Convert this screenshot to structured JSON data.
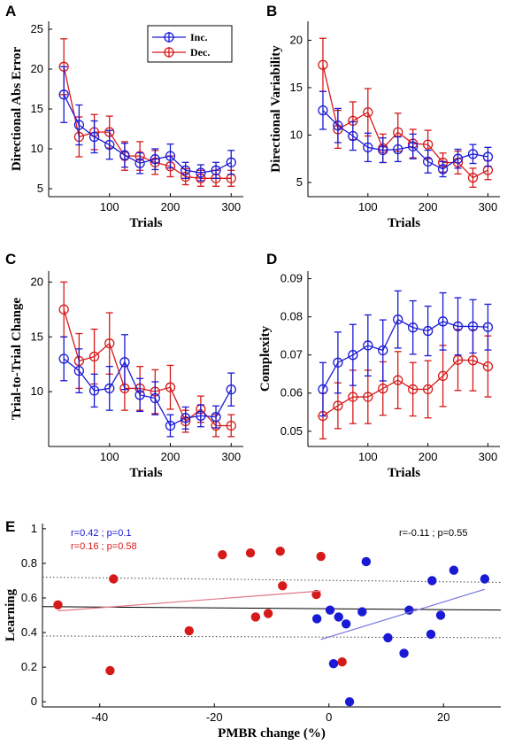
{
  "colors": {
    "inc": "#1a1ad6",
    "dec": "#d61a1a",
    "fit_all": "#000000"
  },
  "chart_data": [
    {
      "panel": "A",
      "type": "line",
      "ylabel": "Directional Abs Error",
      "xlabel": "Trials",
      "xlim": [
        0,
        320
      ],
      "ylim": [
        4,
        26
      ],
      "xticks": [
        100,
        200,
        300
      ],
      "yticks": [
        5,
        10,
        15,
        20,
        25
      ],
      "legend": {
        "placement": "top-center",
        "entries": [
          "Inc.",
          "Dec."
        ]
      },
      "x": [
        25,
        50,
        75,
        100,
        125,
        150,
        175,
        200,
        225,
        250,
        275,
        300
      ],
      "series": [
        {
          "name": "Inc.",
          "values": [
            16.8,
            13.0,
            11.5,
            10.5,
            9.2,
            8.2,
            8.7,
            9.1,
            7.3,
            7.0,
            7.3,
            8.3
          ],
          "err": [
            3.5,
            2.5,
            2.0,
            1.8,
            1.5,
            1.3,
            1.3,
            1.5,
            1.0,
            1.0,
            1.0,
            1.5
          ]
        },
        {
          "name": "Dec.",
          "values": [
            20.3,
            11.5,
            12.1,
            12.1,
            9.1,
            9.1,
            8.3,
            7.8,
            6.5,
            6.3,
            6.3,
            6.3
          ],
          "err": [
            3.5,
            2.5,
            2.2,
            2.0,
            1.8,
            1.8,
            1.5,
            1.3,
            1.0,
            1.0,
            1.0,
            1.0
          ]
        }
      ]
    },
    {
      "panel": "B",
      "type": "line",
      "ylabel": "Directional Variability",
      "xlabel": "Trials",
      "xlim": [
        0,
        320
      ],
      "ylim": [
        3.5,
        22
      ],
      "xticks": [
        100,
        200,
        300
      ],
      "yticks": [
        5,
        10,
        15,
        20
      ],
      "x": [
        25,
        50,
        75,
        100,
        125,
        150,
        175,
        200,
        225,
        250,
        275,
        300
      ],
      "series": [
        {
          "name": "Inc.",
          "values": [
            12.6,
            11.0,
            9.9,
            8.7,
            8.4,
            8.5,
            8.8,
            7.2,
            6.4,
            7.5,
            8.0,
            7.7
          ],
          "err": [
            2.0,
            1.8,
            1.5,
            1.5,
            1.3,
            1.3,
            1.3,
            1.2,
            0.8,
            1.0,
            1.0,
            1.0
          ]
        },
        {
          "name": "Dec.",
          "values": [
            17.4,
            10.6,
            11.5,
            12.4,
            8.6,
            10.3,
            9.1,
            9.0,
            7.1,
            7.1,
            5.5,
            6.3
          ],
          "err": [
            2.8,
            2.0,
            2.0,
            2.5,
            1.5,
            2.0,
            1.5,
            1.5,
            1.0,
            1.2,
            1.0,
            1.0
          ]
        }
      ]
    },
    {
      "panel": "C",
      "type": "line",
      "ylabel": "Trial-to-Trial Change",
      "xlabel": "Trials",
      "xlim": [
        0,
        320
      ],
      "ylim": [
        5,
        21
      ],
      "xticks": [
        100,
        200,
        300
      ],
      "yticks": [
        10,
        15,
        20
      ],
      "x": [
        25,
        50,
        75,
        100,
        125,
        150,
        175,
        200,
        225,
        250,
        275,
        300
      ],
      "series": [
        {
          "name": "Inc.",
          "values": [
            13.0,
            11.9,
            10.1,
            10.3,
            12.7,
            9.7,
            9.4,
            6.9,
            7.6,
            7.8,
            7.7,
            10.2
          ],
          "err": [
            2.0,
            2.0,
            1.5,
            2.0,
            2.5,
            1.5,
            1.5,
            1.0,
            1.0,
            1.0,
            1.0,
            1.5
          ]
        },
        {
          "name": "Dec.",
          "values": [
            17.5,
            12.8,
            13.2,
            14.4,
            10.3,
            10.3,
            10.0,
            10.4,
            7.3,
            8.4,
            6.9,
            6.9
          ],
          "err": [
            2.5,
            2.5,
            2.5,
            2.8,
            2.0,
            2.0,
            2.0,
            2.0,
            1.0,
            1.2,
            1.0,
            1.0
          ]
        }
      ]
    },
    {
      "panel": "D",
      "type": "line",
      "ylabel": "Complexity",
      "xlabel": "Trials",
      "xlim": [
        0,
        320
      ],
      "ylim": [
        0.046,
        0.092
      ],
      "xticks": [
        100,
        200,
        300
      ],
      "yticks": [
        0.05,
        0.06,
        0.07,
        0.08,
        0.09
      ],
      "x": [
        25,
        50,
        75,
        100,
        125,
        150,
        175,
        200,
        225,
        250,
        275,
        300
      ],
      "series": [
        {
          "name": "Inc.",
          "values": [
            0.061,
            0.068,
            0.07,
            0.0725,
            0.0712,
            0.0793,
            0.0772,
            0.0763,
            0.0788,
            0.0775,
            0.0775,
            0.0773
          ],
          "err": [
            0.007,
            0.008,
            0.008,
            0.008,
            0.008,
            0.0075,
            0.007,
            0.0065,
            0.0075,
            0.0075,
            0.007,
            0.006
          ]
        },
        {
          "name": "Dec.",
          "values": [
            0.054,
            0.0567,
            0.059,
            0.059,
            0.0612,
            0.0634,
            0.061,
            0.061,
            0.0645,
            0.0687,
            0.0686,
            0.067
          ],
          "err": [
            0.006,
            0.006,
            0.007,
            0.007,
            0.007,
            0.0075,
            0.007,
            0.0075,
            0.008,
            0.008,
            0.008,
            0.008
          ]
        }
      ]
    },
    {
      "panel": "E",
      "type": "scatter",
      "ylabel": "Learning",
      "xlabel": "PMBR change (%)",
      "xlim": [
        -50,
        30
      ],
      "ylim": [
        -0.03,
        1.03
      ],
      "xticks": [
        -40,
        -20,
        0,
        20
      ],
      "yticks": [
        0,
        0.2,
        0.4,
        0.6,
        0.8,
        1
      ],
      "xticklabels": [
        "-40",
        "-20",
        "0",
        "20"
      ],
      "yticklabels": [
        "0",
        "0.2",
        "0.4",
        "0.6",
        "0.8",
        "1"
      ],
      "annotations": {
        "inc_stats": "r=0.42 ;  p=0.1",
        "dec_stats": "r=0.16 ;  p=0.58",
        "all_stats": "r=-0.11 ;  p=0.55"
      },
      "series": [
        {
          "name": "Dec.",
          "points": [
            [
              -47.3,
              0.56
            ],
            [
              -37.6,
              0.71
            ],
            [
              -38.2,
              0.18
            ],
            [
              -24.4,
              0.41
            ],
            [
              -18.6,
              0.85
            ],
            [
              -13.7,
              0.86
            ],
            [
              -12.8,
              0.49
            ],
            [
              -10.6,
              0.51
            ],
            [
              -8.5,
              0.87
            ],
            [
              -8.1,
              0.67
            ],
            [
              -2.2,
              0.62
            ],
            [
              -1.4,
              0.84
            ],
            [
              2.3,
              0.23
            ]
          ],
          "fit": [
            [
              -47.3,
              0.525
            ],
            [
              -1.4,
              0.64
            ]
          ]
        },
        {
          "name": "Inc.",
          "points": [
            [
              -2.1,
              0.48
            ],
            [
              0.2,
              0.53
            ],
            [
              0.8,
              0.22
            ],
            [
              1.7,
              0.49
            ],
            [
              3.0,
              0.45
            ],
            [
              3.6,
              0.0
            ],
            [
              5.8,
              0.52
            ],
            [
              6.5,
              0.81
            ],
            [
              10.3,
              0.37
            ],
            [
              13.1,
              0.28
            ],
            [
              14.0,
              0.53
            ],
            [
              17.8,
              0.39
            ],
            [
              18.0,
              0.7
            ],
            [
              19.5,
              0.5
            ],
            [
              21.8,
              0.76
            ],
            [
              27.2,
              0.71
            ]
          ],
          "fit": [
            [
              -1.4,
              0.36
            ],
            [
              27.2,
              0.65
            ]
          ]
        },
        {
          "name": "All",
          "fit": [
            [
              -50,
              0.55
            ],
            [
              30,
              0.53
            ]
          ],
          "ci_upper": [
            [
              -50,
              0.72
            ],
            [
              30,
              0.69
            ]
          ],
          "ci_lower": [
            [
              -50,
              0.38
            ],
            [
              30,
              0.37
            ]
          ]
        }
      ]
    }
  ]
}
